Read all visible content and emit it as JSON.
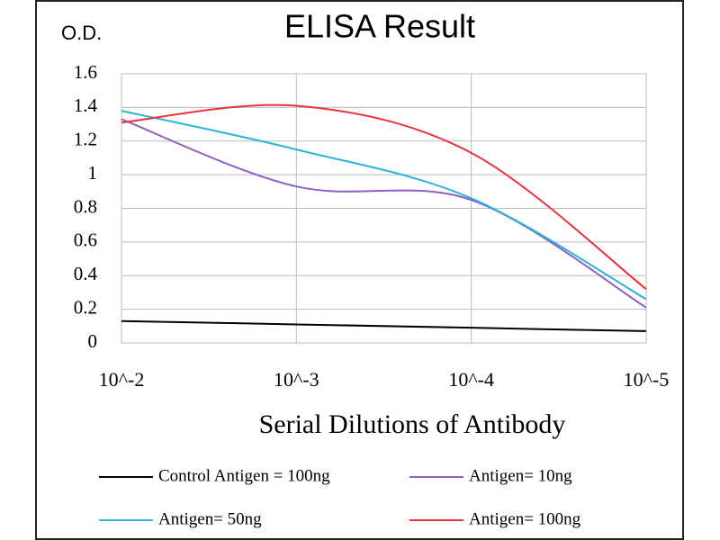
{
  "chart_data": {
    "type": "line",
    "title": "ELISA Result",
    "y_label": "O.D.",
    "x_label": "Serial Dilutions  of Antibody",
    "categories": [
      "10^-2",
      "10^-3",
      "10^-4",
      "10^-5"
    ],
    "series": [
      {
        "name": "Control Antigen = 100ng",
        "color": "#000000",
        "values": [
          0.13,
          0.11,
          0.09,
          0.07
        ]
      },
      {
        "name": "Antigen= 10ng",
        "color": "#8e5fc2",
        "values": [
          1.33,
          0.93,
          0.85,
          0.21
        ]
      },
      {
        "name": "Antigen= 50ng",
        "color": "#2bb5d6",
        "values": [
          1.38,
          1.15,
          0.86,
          0.26
        ]
      },
      {
        "name": "Antigen= 100ng",
        "color": "#e8333a",
        "values": [
          1.31,
          1.41,
          1.13,
          0.32
        ]
      }
    ],
    "ylim": [
      0,
      1.6
    ],
    "yticks": [
      0,
      0.2,
      0.4,
      0.6,
      0.8,
      1,
      1.2,
      1.4,
      1.6
    ],
    "grid": true,
    "smooth": true
  }
}
